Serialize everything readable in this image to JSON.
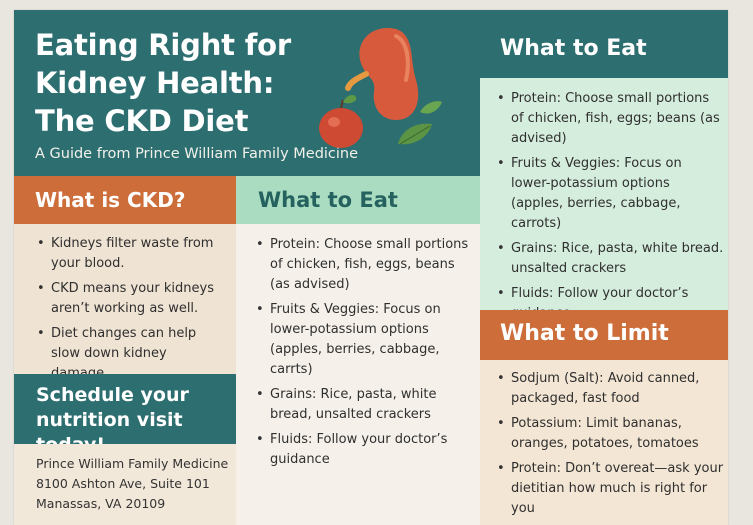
{
  "header": {
    "title": "Eating Right for\nKidney Health:\nThe CKD Diet",
    "subtitle": "A Guide from Prince William Family Medicine"
  },
  "what_is_ckd": {
    "heading": "What is CKD?",
    "items": [
      "Kidneys filter waste from your blood.",
      "CKD means your kidneys aren’t working as well.",
      "Diet changes can help slow down kidney damage."
    ]
  },
  "schedule": {
    "heading": "Schedule your nutrition visit today!",
    "address": [
      "Prince William Family Medicine",
      "8100 Ashton Ave, Suite 101",
      "Manassas, VA 20109"
    ]
  },
  "what_to_eat_middle": {
    "heading": "What to Eat",
    "items": [
      "Protein: Choose small portions of chicken, fish, eggs, beans (as advised)",
      "Fruits & Veggies: Focus on lower-potassium options (apples, berries, cabbage, carrts)",
      "Grains: Rice, pasta, white bread, unsalted crackers",
      "Fluids: Follow your doctor’s guidance"
    ]
  },
  "what_to_eat_right": {
    "heading": "What to Eat",
    "items": [
      "Protein: Choose small portions of chicken, fish, eggs; beans (as advised)",
      "Fruits & Veggies: Focus on lower-potassium options (apples, berries, cabbage, carrots)",
      "Grains: Rice, pasta, white bread. unsalted crackers",
      "Fluids: Follow your doctor’s guidance"
    ]
  },
  "what_to_limit": {
    "heading": "What to Limit",
    "items": [
      "Sodjum (Salt): Avoid canned, packaged, fast food",
      "Potassium: Limit bananas, oranges, potatoes, tomatoes",
      "Protein: Don’t overeat—ask your dietitian how much is right for you"
    ]
  },
  "colors": {
    "teal": "#2d6e70",
    "orange": "#cd6e3a",
    "mint": "#a9dcc0"
  },
  "icons": [
    "kidney-icon",
    "apple-icon",
    "leaf-icon"
  ]
}
